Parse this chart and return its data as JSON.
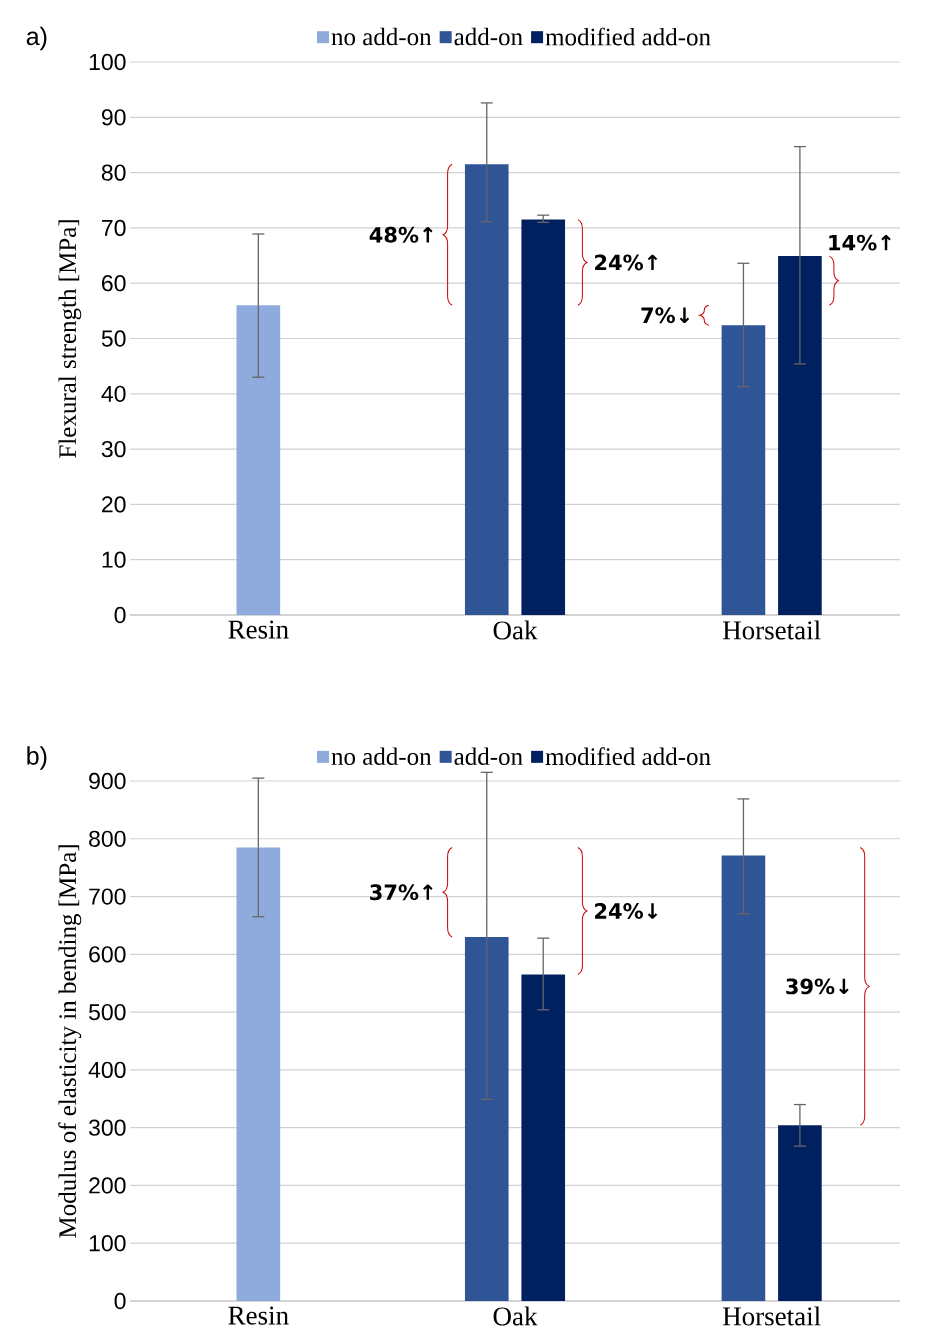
{
  "chart_data": [
    {
      "type": "bar",
      "title": "a)",
      "ylabel": "Flexural strength [MPa]",
      "categories": [
        "Resin",
        "Oak",
        "Horsetail"
      ],
      "series": [
        {
          "name": "no add-on",
          "color": "#8faadc",
          "values": [
            56.0,
            null,
            null
          ],
          "errors": [
            [
              43.0,
              68.9
            ],
            null,
            null
          ]
        },
        {
          "name": "add-on",
          "color": "#2f5597",
          "values": [
            null,
            81.5,
            52.4
          ],
          "errors": [
            null,
            [
              71.1,
              92.6
            ],
            [
              41.3,
              63.6
            ]
          ]
        },
        {
          "name": "modified add-on",
          "color": "#002060",
          "values": [
            null,
            71.5,
            64.9
          ],
          "errors": [
            null,
            [
              71.0,
              72.3
            ],
            [
              45.4,
              84.7
            ]
          ]
        }
      ],
      "ylim": [
        0,
        100
      ],
      "yticks": [
        0,
        10,
        20,
        30,
        40,
        50,
        60,
        70,
        80,
        90,
        100
      ],
      "grid": "y",
      "legend": "top",
      "annotations": [
        "48%↑",
        "24%↑",
        "7%↓",
        "14%↑"
      ]
    },
    {
      "type": "bar",
      "title": "b)",
      "ylabel": "Modulus of elasticity in bending [MPa]",
      "categories": [
        "Resin",
        "Oak",
        "Horsetail"
      ],
      "series": [
        {
          "name": "no add-on",
          "color": "#8faadc",
          "values": [
            785,
            null,
            null
          ],
          "errors": [
            [
              665,
              905
            ],
            null,
            null
          ]
        },
        {
          "name": "add-on",
          "color": "#2f5597",
          "values": [
            null,
            630,
            771
          ],
          "errors": [
            null,
            [
              349,
              915
            ],
            [
              670,
              869
            ]
          ]
        },
        {
          "name": "modified add-on",
          "color": "#002060",
          "values": [
            null,
            565,
            304
          ],
          "errors": [
            null,
            [
              504,
              628
            ],
            [
              268,
              340
            ]
          ]
        }
      ],
      "ylim": [
        0,
        900
      ],
      "yticks": [
        0,
        100,
        200,
        300,
        400,
        500,
        600,
        700,
        800,
        900
      ],
      "grid": "y",
      "legend": "top",
      "annotations": [
        "37%↑",
        "24%↓",
        "39%↓"
      ]
    }
  ]
}
